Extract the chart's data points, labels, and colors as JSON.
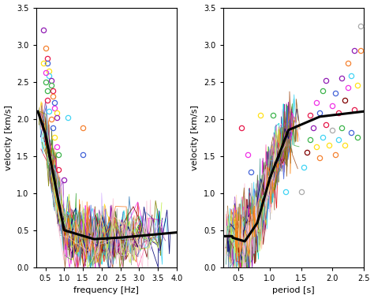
{
  "left_xlim": [
    0.25,
    4.0
  ],
  "left_ylim": [
    0.0,
    3.5
  ],
  "right_xlim": [
    0.25,
    2.5
  ],
  "right_ylim": [
    0.0,
    3.5
  ],
  "left_xlabel": "frequency [Hz]",
  "right_xlabel": "period [s]",
  "ylabel": "velocity [km/s]",
  "left_xticks": [
    0.5,
    1.0,
    1.5,
    2.0,
    2.5,
    3.0,
    3.5,
    4.0
  ],
  "right_xticks": [
    0.5,
    1.0,
    1.5,
    2.0,
    2.5
  ],
  "yticks": [
    0.0,
    0.5,
    1.0,
    1.5,
    2.0,
    2.5,
    3.0,
    3.5
  ],
  "n_curves": 80,
  "curve_lw": 0.6,
  "black_lw": 2.2,
  "seed": 7,
  "colors_pool": [
    "#e6194b",
    "#f58231",
    "#ffe119",
    "#3cb44b",
    "#42d4f4",
    "#4363d8",
    "#911eb4",
    "#f032e6",
    "#a9a9a9",
    "#800000",
    "#9A6324",
    "#808000",
    "#469990",
    "#000075",
    "#dcbeff",
    "#aaffc3",
    "#ffd8b1",
    "#bfef45",
    "#fabed4",
    "#ff7f00",
    "#a65628",
    "#984ea3",
    "#e41a1c",
    "#377eb8",
    "#4daf4a",
    "#ff69b4",
    "#00ced1",
    "#8b4513",
    "#556b2f",
    "#8b008b"
  ]
}
